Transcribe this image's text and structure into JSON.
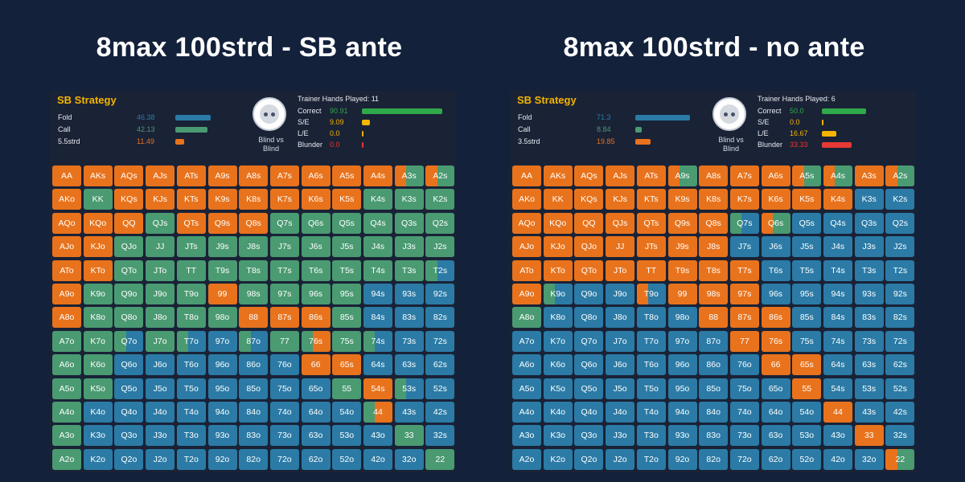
{
  "colors": {
    "fold": "#2b7ba6",
    "call": "#4a9a72",
    "raise": "#e8731c"
  },
  "panels": [
    {
      "id": "left",
      "heading": "8max 100strd - SB ante",
      "strategy": {
        "title": "SB Strategy",
        "actions": [
          {
            "label": "Fold",
            "value": "46.38",
            "color": "#2b7ba6",
            "pct": 46.38
          },
          {
            "label": "Call",
            "value": "42.13",
            "color": "#4a9a72",
            "pct": 42.13
          },
          {
            "label": "5.5strd",
            "value": "11.49",
            "color": "#e8731c",
            "pct": 11.49
          }
        ]
      },
      "opponent": "Blind vs Blind",
      "trainer": {
        "header": "Trainer Hands Played: 11",
        "metrics": [
          {
            "label": "Correct",
            "value": "90.91",
            "color": "#2fa84a",
            "pct": 90.91
          },
          {
            "label": "S/E",
            "value": "9.09",
            "color": "#f4b400",
            "pct": 9.09
          },
          {
            "label": "L/E",
            "value": "0.0",
            "color": "#f4b400",
            "pct": 0
          },
          {
            "label": "Blunder",
            "value": "0.0",
            "color": "#e53935",
            "pct": 0
          }
        ]
      },
      "grid": [
        [
          "R",
          "R",
          "R",
          "R",
          "R",
          "R",
          "R",
          "R",
          "R",
          "R",
          "R",
          "RC",
          "RC"
        ],
        [
          "R",
          "C",
          "R",
          "R",
          "R",
          "R",
          "R",
          "R",
          "R",
          "R",
          "C",
          "C",
          "C"
        ],
        [
          "R",
          "R",
          "R",
          "C",
          "R",
          "R",
          "R",
          "C",
          "C",
          "C",
          "C",
          "C",
          "C"
        ],
        [
          "R",
          "R",
          "C",
          "C",
          "C",
          "C",
          "C",
          "C",
          "C",
          "C",
          "C",
          "C",
          "C"
        ],
        [
          "R",
          "R",
          "C",
          "C",
          "C",
          "C",
          "C",
          "C",
          "C",
          "C",
          "C",
          "C",
          "CF"
        ],
        [
          "R",
          "C",
          "C",
          "C",
          "C",
          "R",
          "C",
          "C",
          "C",
          "C",
          "F",
          "F",
          "F"
        ],
        [
          "R",
          "C",
          "C",
          "C",
          "C",
          "C",
          "R",
          "R",
          "R",
          "C",
          "F",
          "F",
          "F"
        ],
        [
          "C",
          "C",
          "CF",
          "C",
          "CF",
          "F",
          "CF",
          "C",
          "CR",
          "C",
          "CF",
          "F",
          "F"
        ],
        [
          "C",
          "C",
          "F",
          "F",
          "F",
          "F",
          "F",
          "F",
          "R",
          "R",
          "F",
          "F",
          "F"
        ],
        [
          "C",
          "C",
          "F",
          "F",
          "F",
          "F",
          "F",
          "F",
          "F",
          "C",
          "R",
          "CF",
          "F"
        ],
        [
          "C",
          "F",
          "F",
          "F",
          "F",
          "F",
          "F",
          "F",
          "F",
          "F",
          "CR",
          "F",
          "F"
        ],
        [
          "C",
          "F",
          "F",
          "F",
          "F",
          "F",
          "F",
          "F",
          "F",
          "F",
          "F",
          "C",
          "F"
        ],
        [
          "C",
          "F",
          "F",
          "F",
          "F",
          "F",
          "F",
          "F",
          "F",
          "F",
          "F",
          "F",
          "C"
        ]
      ]
    },
    {
      "id": "right",
      "heading": "8max 100strd - no ante",
      "strategy": {
        "title": "SB Strategy",
        "actions": [
          {
            "label": "Fold",
            "value": "71.3",
            "color": "#2b7ba6",
            "pct": 71.3
          },
          {
            "label": "Call",
            "value": "8.84",
            "color": "#4a9a72",
            "pct": 8.84
          },
          {
            "label": "3.5strd",
            "value": "19.85",
            "color": "#e8731c",
            "pct": 19.85
          }
        ]
      },
      "opponent": "Blind vs Blind",
      "trainer": {
        "header": "Trainer Hands Played: 6",
        "metrics": [
          {
            "label": "Correct",
            "value": "50.0",
            "color": "#2fa84a",
            "pct": 50
          },
          {
            "label": "S/E",
            "value": "0.0",
            "color": "#f4b400",
            "pct": 0
          },
          {
            "label": "L/E",
            "value": "16.67",
            "color": "#f4b400",
            "pct": 16.67
          },
          {
            "label": "Blunder",
            "value": "33.33",
            "color": "#e53935",
            "pct": 33.33
          }
        ]
      },
      "grid": [
        [
          "R",
          "R",
          "R",
          "R",
          "R",
          "RC",
          "R",
          "R",
          "R",
          "RC",
          "RC",
          "R",
          "RC"
        ],
        [
          "R",
          "R",
          "R",
          "R",
          "R",
          "R",
          "R",
          "R",
          "R",
          "R",
          "R",
          "F",
          "F"
        ],
        [
          "R",
          "R",
          "R",
          "R",
          "R",
          "R",
          "R",
          "CF",
          "RC",
          "F",
          "F",
          "F",
          "F"
        ],
        [
          "R",
          "R",
          "R",
          "R",
          "R",
          "R",
          "R",
          "F",
          "F",
          "F",
          "F",
          "F",
          "F"
        ],
        [
          "R",
          "R",
          "R",
          "R",
          "R",
          "R",
          "R",
          "R",
          "F",
          "F",
          "F",
          "F",
          "F"
        ],
        [
          "R",
          "CF",
          "F",
          "F",
          "RF",
          "R",
          "R",
          "R",
          "F",
          "F",
          "F",
          "F",
          "F"
        ],
        [
          "C",
          "F",
          "F",
          "F",
          "F",
          "F",
          "R",
          "R",
          "R",
          "F",
          "F",
          "F",
          "F"
        ],
        [
          "F",
          "F",
          "F",
          "F",
          "F",
          "F",
          "F",
          "R",
          "R",
          "F",
          "F",
          "F",
          "F"
        ],
        [
          "F",
          "F",
          "F",
          "F",
          "F",
          "F",
          "F",
          "F",
          "R",
          "R",
          "F",
          "F",
          "F"
        ],
        [
          "F",
          "F",
          "F",
          "F",
          "F",
          "F",
          "F",
          "F",
          "F",
          "R",
          "F",
          "F",
          "F"
        ],
        [
          "F",
          "F",
          "F",
          "F",
          "F",
          "F",
          "F",
          "F",
          "F",
          "F",
          "R",
          "F",
          "F"
        ],
        [
          "F",
          "F",
          "F",
          "F",
          "F",
          "F",
          "F",
          "F",
          "F",
          "F",
          "F",
          "R",
          "F"
        ],
        [
          "F",
          "F",
          "F",
          "F",
          "F",
          "F",
          "F",
          "F",
          "F",
          "F",
          "F",
          "F",
          "RC"
        ]
      ]
    }
  ],
  "hands": [
    [
      "AA",
      "AKs",
      "AQs",
      "AJs",
      "ATs",
      "A9s",
      "A8s",
      "A7s",
      "A6s",
      "A5s",
      "A4s",
      "A3s",
      "A2s"
    ],
    [
      "AKo",
      "KK",
      "KQs",
      "KJs",
      "KTs",
      "K9s",
      "K8s",
      "K7s",
      "K6s",
      "K5s",
      "K4s",
      "K3s",
      "K2s"
    ],
    [
      "AQo",
      "KQo",
      "QQ",
      "QJs",
      "QTs",
      "Q9s",
      "Q8s",
      "Q7s",
      "Q6s",
      "Q5s",
      "Q4s",
      "Q3s",
      "Q2s"
    ],
    [
      "AJo",
      "KJo",
      "QJo",
      "JJ",
      "JTs",
      "J9s",
      "J8s",
      "J7s",
      "J6s",
      "J5s",
      "J4s",
      "J3s",
      "J2s"
    ],
    [
      "ATo",
      "KTo",
      "QTo",
      "JTo",
      "TT",
      "T9s",
      "T8s",
      "T7s",
      "T6s",
      "T5s",
      "T4s",
      "T3s",
      "T2s"
    ],
    [
      "A9o",
      "K9o",
      "Q9o",
      "J9o",
      "T9o",
      "99",
      "98s",
      "97s",
      "96s",
      "95s",
      "94s",
      "93s",
      "92s"
    ],
    [
      "A8o",
      "K8o",
      "Q8o",
      "J8o",
      "T8o",
      "98o",
      "88",
      "87s",
      "86s",
      "85s",
      "84s",
      "83s",
      "82s"
    ],
    [
      "A7o",
      "K7o",
      "Q7o",
      "J7o",
      "T7o",
      "97o",
      "87o",
      "77",
      "76s",
      "75s",
      "74s",
      "73s",
      "72s"
    ],
    [
      "A6o",
      "K6o",
      "Q6o",
      "J6o",
      "T6o",
      "96o",
      "86o",
      "76o",
      "66",
      "65s",
      "64s",
      "63s",
      "62s"
    ],
    [
      "A5o",
      "K5o",
      "Q5o",
      "J5o",
      "T5o",
      "95o",
      "85o",
      "75o",
      "65o",
      "55",
      "54s",
      "53s",
      "52s"
    ],
    [
      "A4o",
      "K4o",
      "Q4o",
      "J4o",
      "T4o",
      "94o",
      "84o",
      "74o",
      "64o",
      "54o",
      "44",
      "43s",
      "42s"
    ],
    [
      "A3o",
      "K3o",
      "Q3o",
      "J3o",
      "T3o",
      "93o",
      "83o",
      "73o",
      "63o",
      "53o",
      "43o",
      "33",
      "32s"
    ],
    [
      "A2o",
      "K2o",
      "Q2o",
      "J2o",
      "T2o",
      "92o",
      "82o",
      "72o",
      "62o",
      "52o",
      "42o",
      "32o",
      "22"
    ]
  ]
}
